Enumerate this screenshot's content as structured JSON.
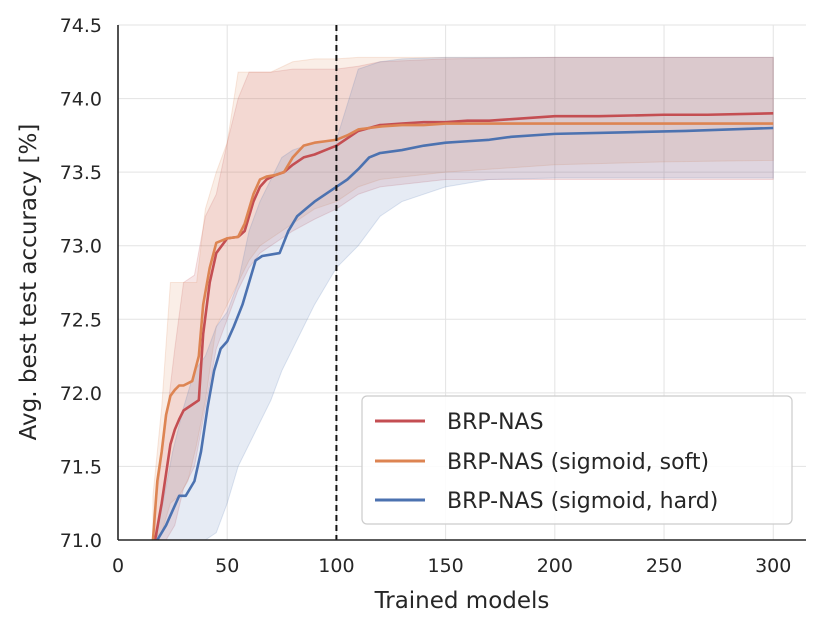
{
  "chart_data": {
    "type": "line",
    "title": "",
    "xlabel": "Trained models",
    "ylabel": "Avg. best test accuracy [%]",
    "xlim": [
      0,
      315
    ],
    "ylim": [
      71.0,
      74.5
    ],
    "xticks": [
      "0",
      "50",
      "100",
      "150",
      "200",
      "250",
      "300"
    ],
    "yticks": [
      "71.0",
      "71.5",
      "72.0",
      "72.5",
      "73.0",
      "73.5",
      "74.0",
      "74.5"
    ],
    "grid": true,
    "legend_position": "lower-right",
    "vline_x": 100,
    "series": [
      {
        "name": "BRP-NAS",
        "color": "#c44e52",
        "x": [
          17,
          20,
          22,
          24,
          26,
          28,
          30,
          34,
          37,
          39,
          42,
          45,
          50,
          55,
          58,
          62,
          65,
          68,
          72,
          76,
          80,
          85,
          90,
          95,
          100,
          105,
          110,
          115,
          120,
          130,
          140,
          150,
          160,
          170,
          180,
          190,
          200,
          220,
          250,
          270,
          300
        ],
        "y": [
          71.0,
          71.25,
          71.45,
          71.65,
          71.75,
          71.82,
          71.88,
          71.92,
          71.95,
          72.4,
          72.75,
          72.95,
          73.05,
          73.06,
          73.1,
          73.3,
          73.4,
          73.45,
          73.48,
          73.5,
          73.55,
          73.6,
          73.62,
          73.65,
          73.68,
          73.73,
          73.78,
          73.8,
          73.82,
          73.83,
          73.84,
          73.84,
          73.85,
          73.85,
          73.86,
          73.87,
          73.88,
          73.88,
          73.89,
          73.89,
          73.9
        ]
      },
      {
        "name": "BRP-NAS (sigmoid, soft)",
        "color": "#dd8452",
        "x": [
          16,
          18,
          20,
          22,
          24,
          26,
          28,
          30,
          34,
          37,
          39,
          42,
          45,
          50,
          55,
          58,
          62,
          65,
          68,
          72,
          76,
          80,
          85,
          90,
          95,
          100,
          105,
          110,
          115,
          120,
          130,
          140,
          150,
          170,
          200,
          250,
          300
        ],
        "y": [
          71.0,
          71.4,
          71.6,
          71.85,
          71.98,
          72.02,
          72.05,
          72.05,
          72.08,
          72.25,
          72.6,
          72.85,
          73.02,
          73.05,
          73.06,
          73.15,
          73.35,
          73.45,
          73.47,
          73.48,
          73.5,
          73.6,
          73.68,
          73.7,
          73.71,
          73.72,
          73.75,
          73.79,
          73.8,
          73.81,
          73.82,
          73.82,
          73.83,
          73.83,
          73.83,
          73.83,
          73.83
        ]
      },
      {
        "name": "BRP-NAS (sigmoid, hard)",
        "color": "#4c72b0",
        "x": [
          18,
          22,
          25,
          28,
          31,
          35,
          38,
          41,
          44,
          47,
          50,
          53,
          57,
          60,
          63,
          66,
          70,
          74,
          78,
          82,
          86,
          90,
          95,
          100,
          105,
          110,
          115,
          120,
          130,
          140,
          150,
          160,
          170,
          180,
          200,
          230,
          260,
          280,
          300
        ],
        "y": [
          71.0,
          71.1,
          71.2,
          71.3,
          71.3,
          71.4,
          71.6,
          71.9,
          72.15,
          72.3,
          72.35,
          72.45,
          72.6,
          72.75,
          72.9,
          72.93,
          72.94,
          72.95,
          73.1,
          73.2,
          73.25,
          73.3,
          73.35,
          73.4,
          73.45,
          73.52,
          73.6,
          73.63,
          73.65,
          73.68,
          73.7,
          73.71,
          73.72,
          73.74,
          73.76,
          73.77,
          73.78,
          73.79,
          73.8
        ]
      }
    ],
    "bands": [
      {
        "color": "#c44e52",
        "x": [
          17,
          22,
          26,
          30,
          35,
          40,
          45,
          50,
          55,
          60,
          65,
          70,
          80,
          90,
          100,
          110,
          120,
          150,
          200,
          250,
          300
        ],
        "upper": [
          71.2,
          71.8,
          72.3,
          72.75,
          72.8,
          73.2,
          73.35,
          73.7,
          74.0,
          74.18,
          74.18,
          74.18,
          74.2,
          74.2,
          74.2,
          74.22,
          74.25,
          74.27,
          74.28,
          74.28,
          74.28
        ],
        "lower": [
          71.0,
          71.0,
          71.1,
          71.35,
          71.5,
          71.9,
          72.3,
          72.5,
          72.7,
          72.85,
          72.95,
          73.0,
          73.1,
          73.18,
          73.25,
          73.35,
          73.4,
          73.45,
          73.45,
          73.45,
          73.45
        ]
      },
      {
        "color": "#dd8452",
        "x": [
          16,
          20,
          24,
          28,
          32,
          36,
          40,
          45,
          50,
          55,
          60,
          65,
          70,
          80,
          90,
          100,
          110,
          120,
          150,
          200,
          250,
          300
        ],
        "upper": [
          71.3,
          71.9,
          72.75,
          72.75,
          72.75,
          72.75,
          73.25,
          73.5,
          73.7,
          74.18,
          74.18,
          74.18,
          74.18,
          74.25,
          74.27,
          74.27,
          74.28,
          74.28,
          74.28,
          74.28,
          74.28,
          74.28
        ],
        "lower": [
          71.0,
          71.05,
          71.25,
          71.3,
          71.4,
          71.65,
          71.95,
          72.45,
          72.6,
          72.75,
          72.9,
          73.0,
          73.05,
          73.15,
          73.25,
          73.3,
          73.4,
          73.45,
          73.5,
          73.55,
          73.57,
          73.58
        ]
      },
      {
        "color": "#4c72b0",
        "x": [
          18,
          25,
          30,
          35,
          40,
          45,
          50,
          55,
          60,
          65,
          70,
          75,
          80,
          90,
          100,
          110,
          120,
          130,
          150,
          170,
          200,
          250,
          300
        ],
        "upper": [
          71.05,
          71.6,
          71.9,
          72.15,
          72.25,
          72.45,
          72.55,
          72.75,
          73.1,
          73.3,
          73.45,
          73.6,
          73.65,
          73.7,
          73.72,
          74.2,
          74.25,
          74.27,
          74.28,
          74.28,
          74.28,
          74.28,
          74.28
        ],
        "lower": [
          71.0,
          71.0,
          71.0,
          71.0,
          71.0,
          71.05,
          71.25,
          71.5,
          71.65,
          71.8,
          71.95,
          72.15,
          72.3,
          72.6,
          72.85,
          73.0,
          73.2,
          73.3,
          73.4,
          73.45,
          73.46,
          73.46,
          73.46
        ]
      }
    ]
  }
}
